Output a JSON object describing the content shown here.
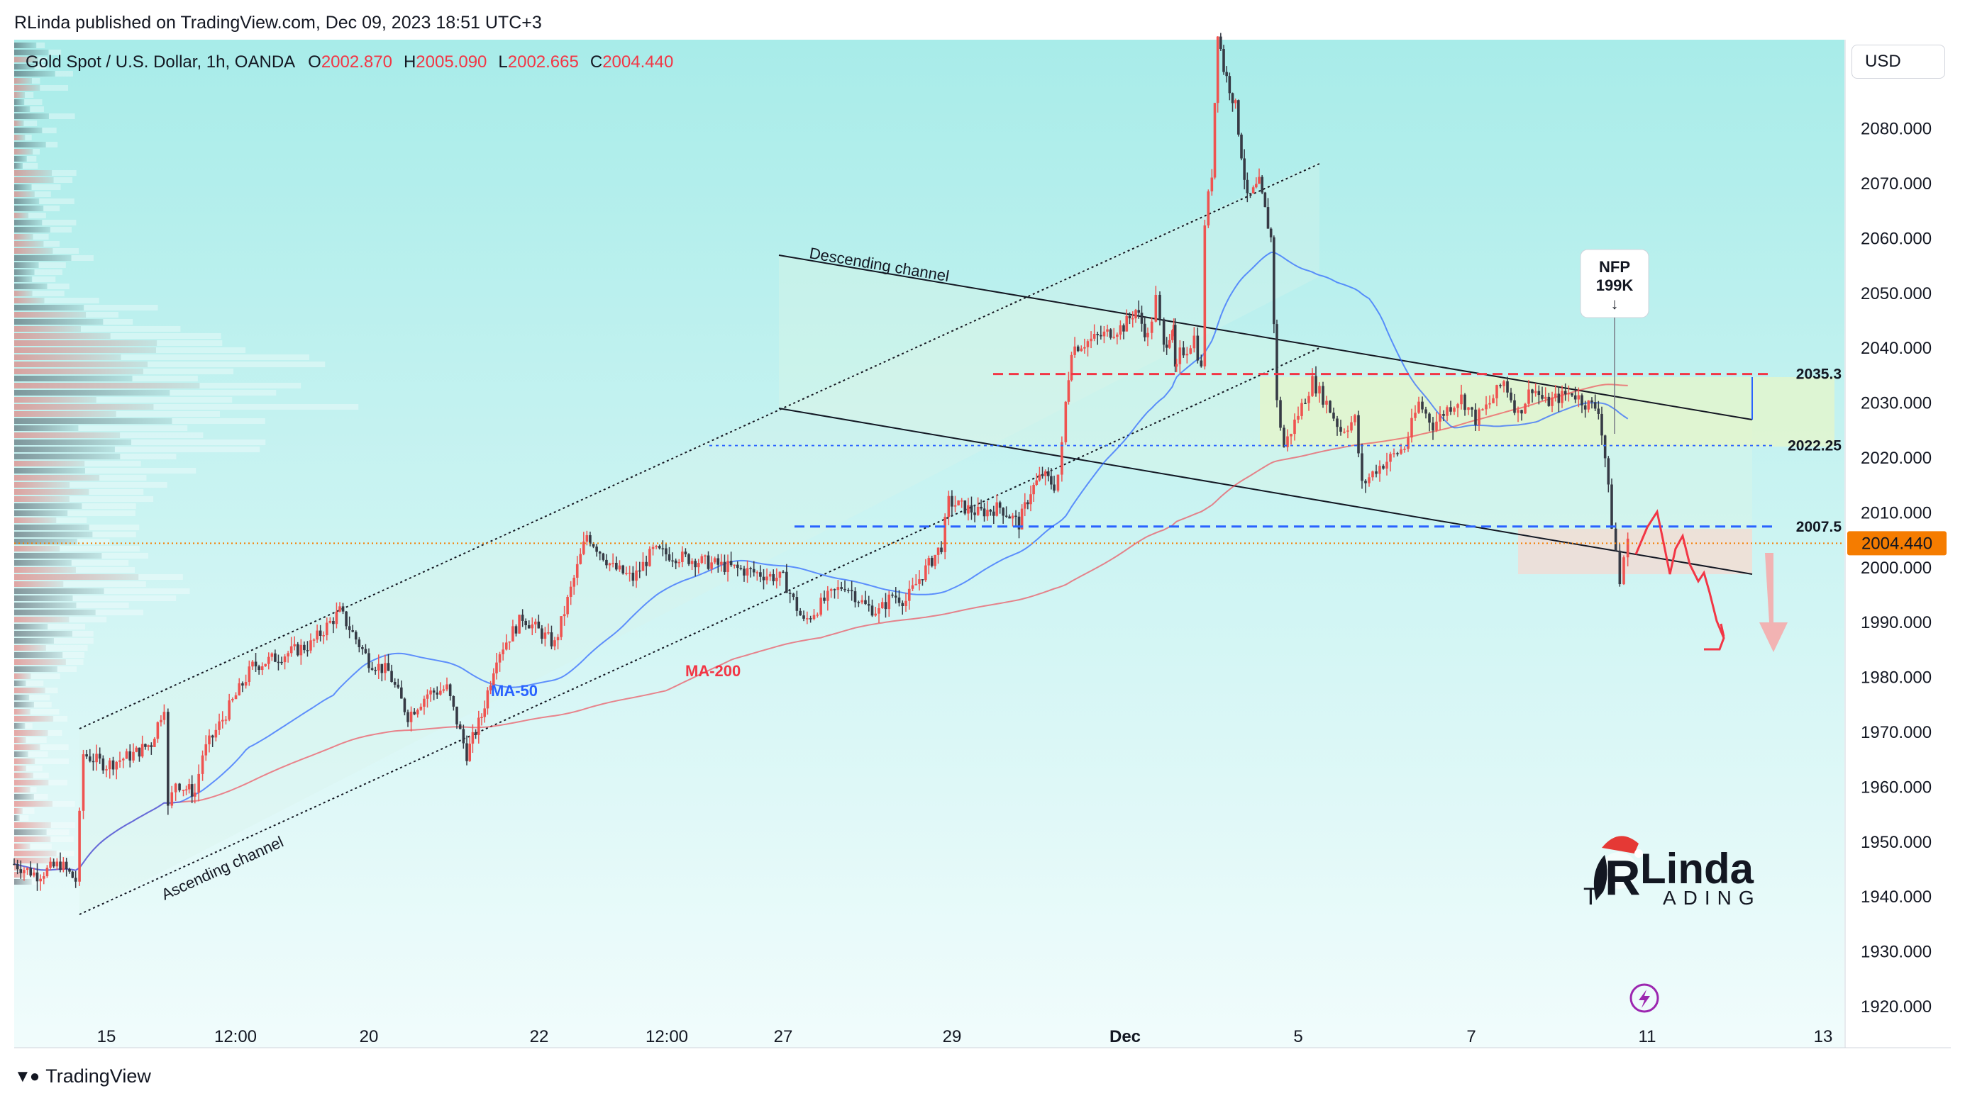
{
  "header": {
    "published": "RLinda published on TradingView.com, Dec 09, 2023 18:51 UTC+3"
  },
  "legend": {
    "symbol": "Gold Spot / U.S. Dollar, 1h, OANDA",
    "o_label": "O",
    "o_value": "2002.870",
    "h_label": "H",
    "h_value": "2005.090",
    "l_label": "L",
    "l_value": "2002.665",
    "c_label": "C",
    "c_value": "2004.440"
  },
  "currency_button": "USD",
  "footer": {
    "brand": "TradingView"
  },
  "logo": {
    "word1": "Linda",
    "word2": "ADING"
  },
  "colors": {
    "bull": "#ef5350",
    "bear": "#363a45",
    "ma50": "#2962ff",
    "ma200": "#f23645",
    "bg_top": "#a8ece9",
    "bg_bottom": "#ecfbfb",
    "price_tag": "#f57c00"
  },
  "chart_data": {
    "type": "candlestick",
    "instrument": "Gold Spot / U.S. Dollar",
    "timeframe": "1h",
    "current_price": "2004.440",
    "y_ticks": [
      "2080.000",
      "2070.000",
      "2060.000",
      "2050.000",
      "2040.000",
      "2030.000",
      "2020.000",
      "2010.000",
      "2000.000",
      "1990.000",
      "1980.000",
      "1970.000",
      "1960.000",
      "1950.000",
      "1940.000",
      "1930.000",
      "1920.000"
    ],
    "x_ticks": [
      "15",
      "12:00",
      "20",
      "22",
      "12:00",
      "27",
      "29",
      "Dec",
      "5",
      "7",
      "11",
      "13"
    ],
    "levels": [
      {
        "value": 2035.3,
        "label": "2035.3",
        "color": "#f23645",
        "style": "dashed"
      },
      {
        "value": 2022.25,
        "label": "2022.25",
        "color": "#2962ff",
        "style": "dotted"
      },
      {
        "value": 2007.5,
        "label": "2007.5",
        "color": "#2962ff",
        "style": "dashed"
      }
    ],
    "annotations": {
      "ascending_channel": "Ascending channel",
      "descending_channel": "Descending channel",
      "ma50": "MA-50",
      "ma200": "MA-200",
      "nfp_line1": "NFP",
      "nfp_line2": "199K",
      "nfp_arrow": "↓"
    },
    "price_path": [
      [
        "2023-11-14 00:00",
        1946
      ],
      [
        "2023-11-14 06:00",
        1944
      ],
      [
        "2023-11-14 12:00",
        1946
      ],
      [
        "2023-11-14 16:00",
        1943
      ],
      [
        "2023-11-14 18:00",
        1966
      ],
      [
        "2023-11-15 00:00",
        1964
      ],
      [
        "2023-11-15 12:00",
        1966
      ],
      [
        "2023-11-15 20:00",
        1968
      ],
      [
        "2023-11-16 04:00",
        1975
      ],
      [
        "2023-11-16 08:00",
        1956
      ],
      [
        "2023-11-16 16:00",
        1961
      ],
      [
        "2023-11-17 00:00",
        1960
      ],
      [
        "2023-11-17 12:00",
        1959
      ],
      [
        "2023-11-17 20:00",
        1966
      ],
      [
        "2023-11-20 00:00",
        1982
      ],
      [
        "2023-11-20 06:00",
        1984
      ],
      [
        "2023-11-20 12:00",
        1986
      ],
      [
        "2023-11-20 18:00",
        1992
      ],
      [
        "2023-11-21 00:00",
        1983
      ],
      [
        "2023-11-21 06:00",
        1981
      ],
      [
        "2023-11-21 12:00",
        1973
      ],
      [
        "2023-11-21 18:00",
        1977
      ],
      [
        "2023-11-22 00:00",
        1978
      ],
      [
        "2023-11-22 08:00",
        1966
      ],
      [
        "2023-11-22 14:00",
        1973
      ],
      [
        "2023-11-22 20:00",
        1984
      ],
      [
        "2023-11-23 04:00",
        1991
      ],
      [
        "2023-11-23 12:00",
        1986
      ],
      [
        "2023-11-23 20:00",
        2006
      ],
      [
        "2023-11-24 04:00",
        2000
      ],
      [
        "2023-11-24 12:00",
        1998
      ],
      [
        "2023-11-24 20:00",
        2003
      ],
      [
        "2023-11-27 00:00",
        1998
      ],
      [
        "2023-11-27 06:00",
        1990
      ],
      [
        "2023-11-27 12:00",
        1994
      ],
      [
        "2023-11-27 18:00",
        1997
      ],
      [
        "2023-11-28 00:00",
        1993
      ],
      [
        "2023-11-28 06:00",
        1992
      ],
      [
        "2023-11-28 12:00",
        1995
      ],
      [
        "2023-11-28 18:00",
        1994
      ],
      [
        "2023-11-29 00:00",
        1998
      ],
      [
        "2023-11-29 06:00",
        2004
      ],
      [
        "2023-11-29 08:00",
        2012
      ],
      [
        "2023-11-29 16:00",
        2010
      ],
      [
        "2023-11-29 22:00",
        2011
      ],
      [
        "2023-11-30 06:00",
        2008
      ],
      [
        "2023-11-30 12:00",
        2014
      ],
      [
        "2023-11-30 18:00",
        2017
      ],
      [
        "2023-12-01 00:00",
        2015
      ],
      [
        "2023-12-01 04:00",
        2017
      ],
      [
        "2023-12-01 08:00",
        2022
      ],
      [
        "2023-12-01 12:00",
        2030
      ],
      [
        "2023-12-01 18:00",
        2040
      ],
      [
        "2023-12-04 00:00",
        2044
      ],
      [
        "2023-12-04 06:00",
        2047
      ],
      [
        "2023-12-04 12:00",
        2042
      ],
      [
        "2023-12-04 16:00",
        2049
      ],
      [
        "2023-12-04 20:00",
        2040
      ],
      [
        "2023-12-05 02:00",
        2044
      ],
      [
        "2023-12-05 08:00",
        2043
      ],
      [
        "2023-12-05 14:00",
        2036
      ],
      [
        "2023-12-05 20:00",
        2036
      ],
      [
        "2023-12-06 02:00",
        2039
      ],
      [
        "2023-12-06 08:00",
        2040
      ],
      [
        "2023-12-06 14:00",
        2042
      ],
      [
        "2023-12-06 20:00",
        2036
      ],
      [
        "2023-12-06 23:00",
        2063
      ],
      [
        "2023-12-07 02:00",
        2072
      ],
      [
        "2023-12-07 04:00",
        2098
      ],
      [
        "2023-12-07 06:00",
        2091
      ],
      [
        "2023-12-07 10:00",
        2084
      ],
      [
        "2023-12-07 14:00",
        2067
      ],
      [
        "2023-12-07 18:00",
        2070
      ],
      [
        "2023-12-07 22:00",
        2060
      ],
      [
        "2023-12-08 00:00",
        2030
      ],
      [
        "2023-12-08 02:00",
        2022
      ],
      [
        "2023-12-08 06:00",
        2028
      ],
      [
        "2023-12-08 10:00",
        2034
      ],
      [
        "2023-12-08 14:00",
        2030
      ],
      [
        "2023-12-08 18:00",
        2025
      ],
      [
        "2023-12-08 22:00",
        2027
      ],
      [
        "2023-12-09 00:00",
        2015
      ],
      [
        "2023-12-09 04:00",
        2018
      ],
      [
        "2023-12-09 08:00",
        2020
      ],
      [
        "2023-12-09 12:00",
        2022
      ],
      [
        "2023-12-09 16:00",
        2030
      ],
      [
        "2023-12-09 20:00",
        2026
      ],
      [
        "2023-12-10 00:00",
        2029
      ],
      [
        "2023-12-10 04:00",
        2031
      ],
      [
        "2023-12-10 08:00",
        2027
      ],
      [
        "2023-12-10 12:00",
        2030
      ],
      [
        "2023-12-10 16:00",
        2034
      ],
      [
        "2023-12-10 20:00",
        2028
      ],
      [
        "2023-12-11 00:00",
        2033
      ],
      [
        "2023-12-11 04:00",
        2030
      ],
      [
        "2023-12-11 08:00",
        2031
      ],
      [
        "2023-12-11 12:00",
        2032
      ],
      [
        "2023-12-11 16:00",
        2030
      ],
      [
        "2023-12-11 20:00",
        2029
      ],
      [
        "2023-12-11 22:00",
        2020
      ],
      [
        "2023-12-12 00:00",
        2008
      ],
      [
        "2023-12-12 02:00",
        2003
      ],
      [
        "2023-12-12 04:00",
        1997
      ],
      [
        "2023-12-12 06:00",
        2002
      ],
      [
        "2023-12-12 08:00",
        2004.44
      ]
    ]
  }
}
